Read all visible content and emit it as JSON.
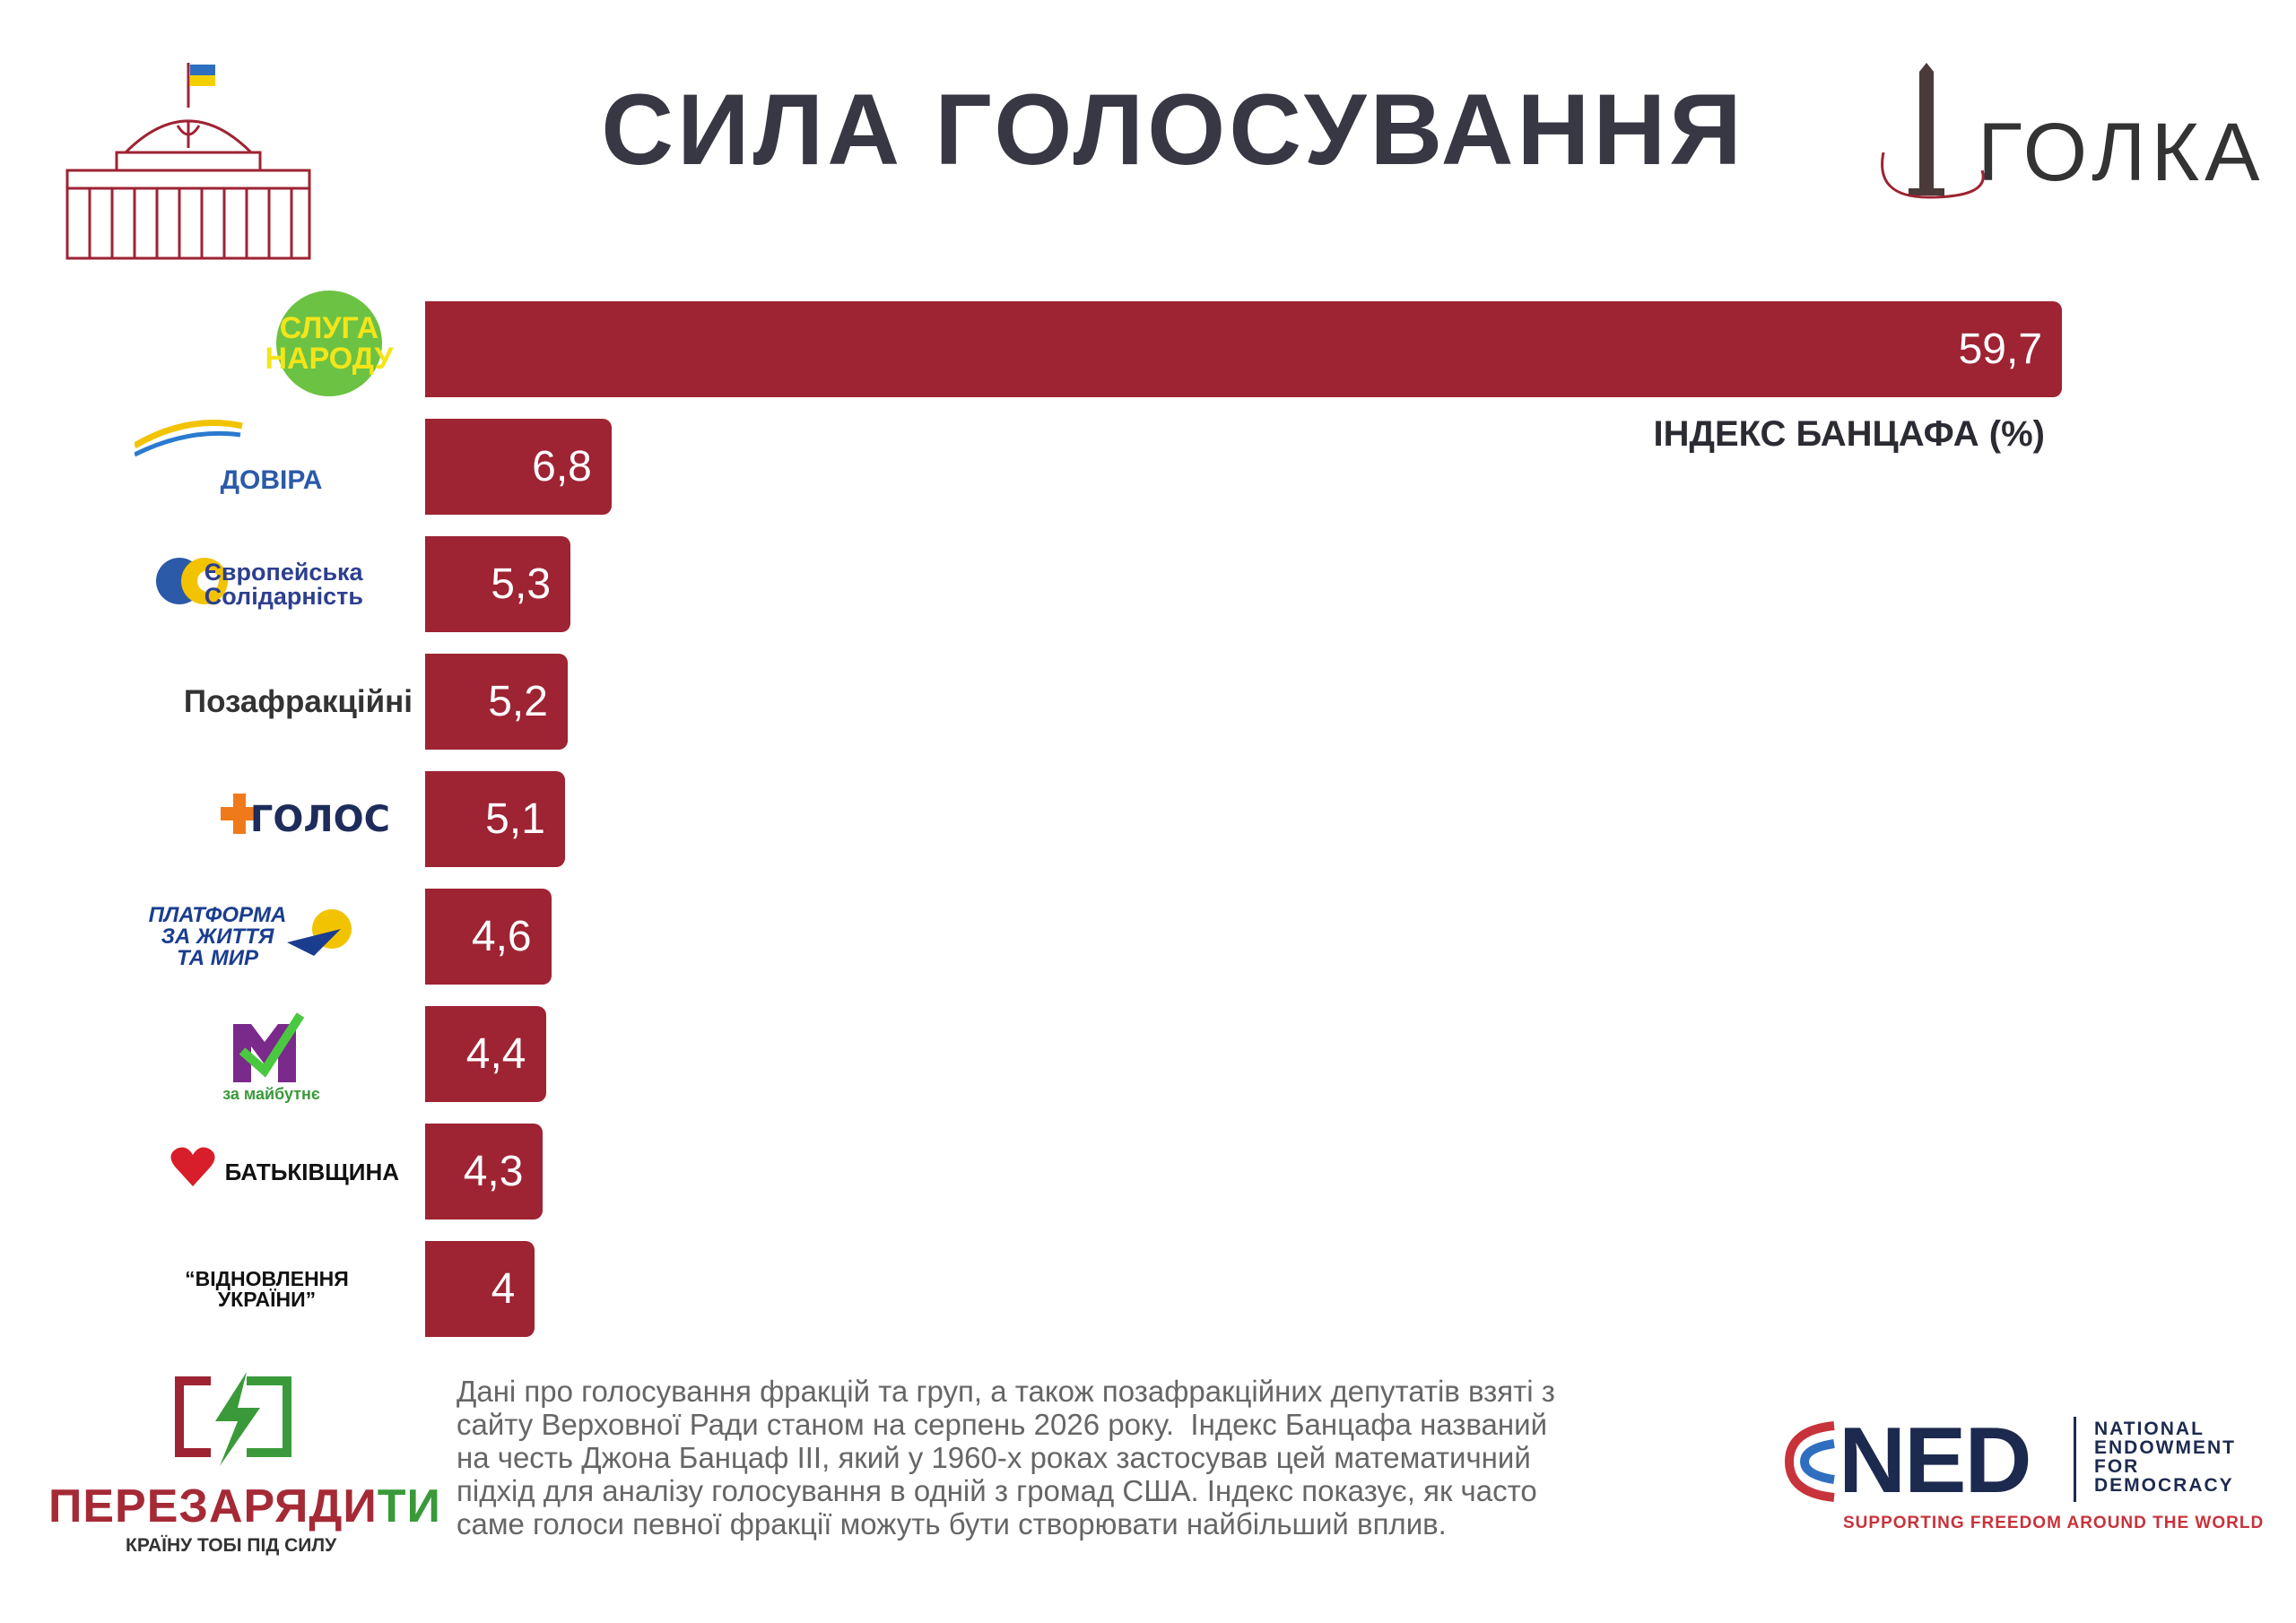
{
  "header": {
    "title": "СИЛА ГОЛОСУВАННЯ",
    "brand": "ГОЛКА"
  },
  "chart_data": {
    "type": "bar",
    "orientation": "horizontal",
    "categories": [
      "СЛУГА\nНАРОДУ",
      "ДОВІРА",
      "Європейська\nСолідарність",
      "Позафракційні",
      "ГОЛОС",
      "ПЛАТФОРМА\nЗА ЖИТТЯ\nТА МИР",
      "за майбутнє",
      "БАТЬКІВЩИНА",
      "“ВІДНОВЛЕННЯ\nУКРАЇНИ”"
    ],
    "values": [
      59.7,
      6.8,
      5.3,
      5.2,
      5.1,
      4.6,
      4.4,
      4.3,
      4
    ],
    "value_labels": [
      "59,7",
      "6,8",
      "5,3",
      "5,2",
      "5,1",
      "4,6",
      "4,4",
      "4,3",
      "4"
    ],
    "color": "#9e2333",
    "xlabel": "ІНДЕКС БАНЦАФА (%)"
  },
  "footer": {
    "note": [
      "Дані про голосування фракцій та груп, а також позафракційних депутатів взяті з",
      "сайту Верховної Ради станом на серпень 2026 року.  Індекс Банцафа названий",
      "на честь Джона Банцаф ІІІ, який у 1960-х роках застосував цей математичний",
      "підхід для аналізу голосування в одній з громад США. Індекс показує, як часто",
      "саме голоси певної фракції можуть бути створювати найбільший вплив."
    ],
    "left_logo": {
      "name_main": "ПЕРЕЗАРЯДИ",
      "name_end": "ТИ",
      "slogan": "КРАЇНУ ТОБІ ПІД СИЛУ"
    },
    "right_logo": {
      "mark": "NED",
      "name": "NATIONAL\nENDOWMENT\nFOR\nDEMOCRACY",
      "slogan": "SUPPORTING FREEDOM AROUND THE WORLD"
    }
  }
}
